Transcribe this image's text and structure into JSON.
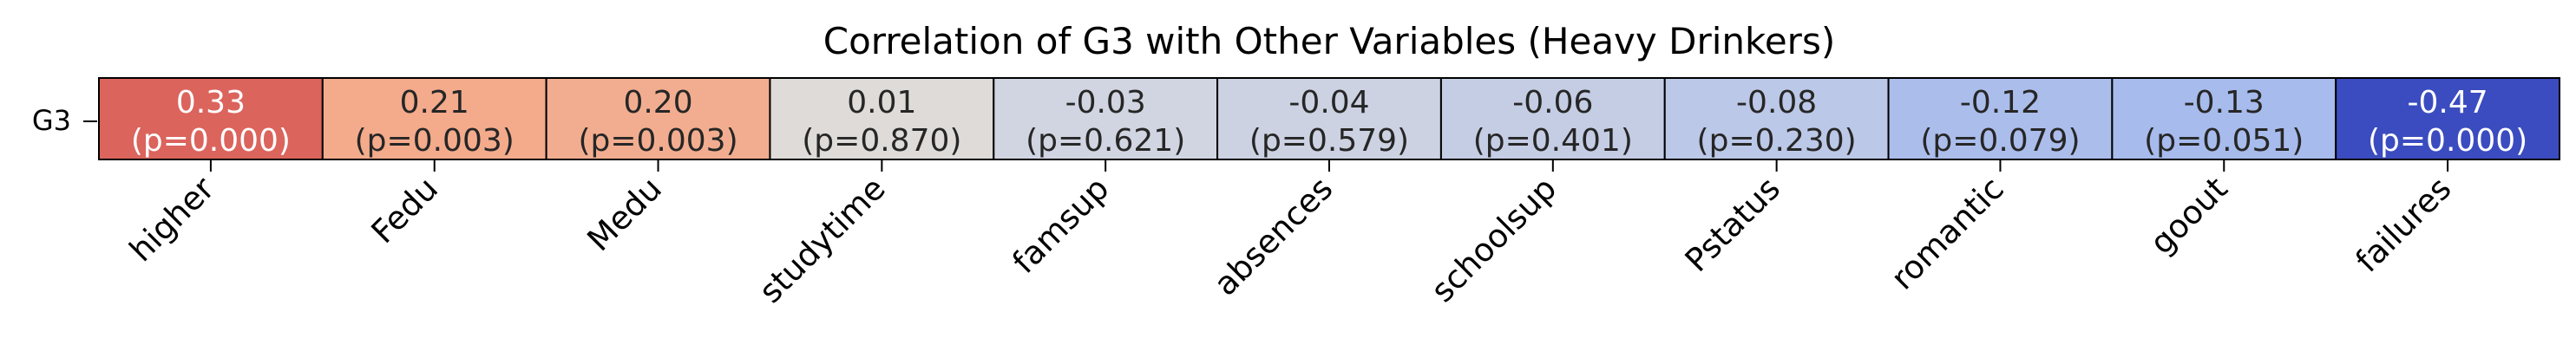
{
  "chart_data": {
    "type": "heatmap",
    "title": "Correlation of G3 with Other Variables (Heavy Drinkers)",
    "row_label": "G3",
    "categories": [
      "higher",
      "Fedu",
      "Medu",
      "studytime",
      "famsup",
      "absences",
      "schoolsup",
      "Pstatus",
      "romantic",
      "goout",
      "failures"
    ],
    "values": [
      0.33,
      0.21,
      0.2,
      0.01,
      -0.03,
      -0.04,
      -0.06,
      -0.08,
      -0.12,
      -0.13,
      -0.47
    ],
    "value_labels": [
      "0.33",
      "0.21",
      "0.20",
      "0.01",
      "-0.03",
      "-0.04",
      "-0.06",
      "-0.08",
      "-0.12",
      "-0.13",
      "-0.47"
    ],
    "p_labels": [
      "(p=0.000)",
      "(p=0.003)",
      "(p=0.003)",
      "(p=0.870)",
      "(p=0.621)",
      "(p=0.579)",
      "(p=0.401)",
      "(p=0.230)",
      "(p=0.079)",
      "(p=0.051)",
      "(p=0.000)"
    ],
    "colormap": "coolwarm",
    "color_range": [
      -0.47,
      0.47
    ],
    "xlabel": "",
    "ylabel": ""
  }
}
